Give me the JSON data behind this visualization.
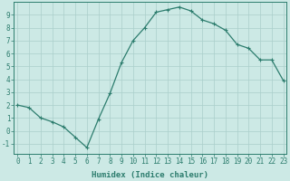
{
  "xlabel": "Humidex (Indice chaleur)",
  "x": [
    0,
    1,
    2,
    3,
    4,
    5,
    6,
    7,
    8,
    9,
    10,
    11,
    12,
    13,
    14,
    15,
    16,
    17,
    18,
    19,
    20,
    21,
    22,
    23
  ],
  "y": [
    2,
    1.8,
    1.0,
    0.7,
    0.3,
    -0.5,
    -1.3,
    0.9,
    2.9,
    5.3,
    7.0,
    8.0,
    9.2,
    9.4,
    9.6,
    9.3,
    8.6,
    8.3,
    7.8,
    6.7,
    6.4,
    5.5,
    5.5,
    3.9
  ],
  "line_color": "#2d7d6e",
  "marker": "+",
  "marker_size": 3,
  "marker_linewidth": 0.8,
  "linewidth": 0.9,
  "bg_color": "#cce9e5",
  "grid_color": "#aacfcb",
  "ylim": [
    -1.8,
    10.0
  ],
  "xlim": [
    -0.3,
    23.3
  ],
  "yticks": [
    -1,
    0,
    1,
    2,
    3,
    4,
    5,
    6,
    7,
    8,
    9
  ],
  "xticks": [
    0,
    1,
    2,
    3,
    4,
    5,
    6,
    7,
    8,
    9,
    10,
    11,
    12,
    13,
    14,
    15,
    16,
    17,
    18,
    19,
    20,
    21,
    22,
    23
  ],
  "xlabel_fontsize": 6.5,
  "tick_fontsize": 5.5,
  "xlabel_fontweight": "bold",
  "tick_color": "#2d7d6e",
  "spine_color": "#2d7d6e"
}
